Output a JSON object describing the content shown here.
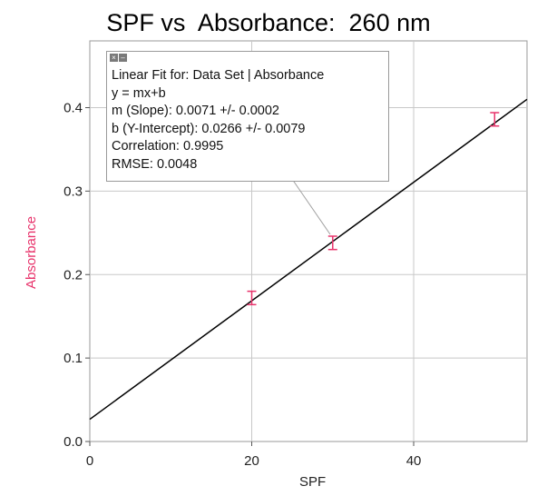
{
  "chart_data": {
    "type": "scatter",
    "title": "SPF vs  Absorbance:  260 nm",
    "xlabel": "SPF",
    "ylabel": "Absorbance",
    "xlim": [
      0,
      54
    ],
    "ylim": [
      0,
      0.48
    ],
    "x_ticks": [
      "0",
      "20",
      "40"
    ],
    "y_ticks": [
      "0.0",
      "0.1",
      "0.2",
      "0.3",
      "0.4"
    ],
    "grid": true,
    "series": [
      {
        "points": [
          {
            "x": 20,
            "y": 0.172,
            "err": 0.008
          },
          {
            "x": 30,
            "y": 0.238,
            "err": 0.008
          },
          {
            "x": 50,
            "y": 0.386,
            "err": 0.008
          }
        ]
      }
    ],
    "fit": {
      "slope": 0.0071,
      "intercept": 0.0266
    }
  },
  "fit_box": {
    "lines": [
      "Linear Fit for: Data Set | Absorbance",
      "y = mx+b",
      "m (Slope): 0.0071 +/- 0.0002",
      "b (Y-Intercept): 0.0266 +/- 0.0079",
      "Correlation: 0.9995",
      "RMSE: 0.0048"
    ]
  },
  "colors": {
    "ylabel": "#e8336b",
    "error_bars": "#e8336b",
    "fit_line": "#000000",
    "grid": "#c8c8c8"
  }
}
